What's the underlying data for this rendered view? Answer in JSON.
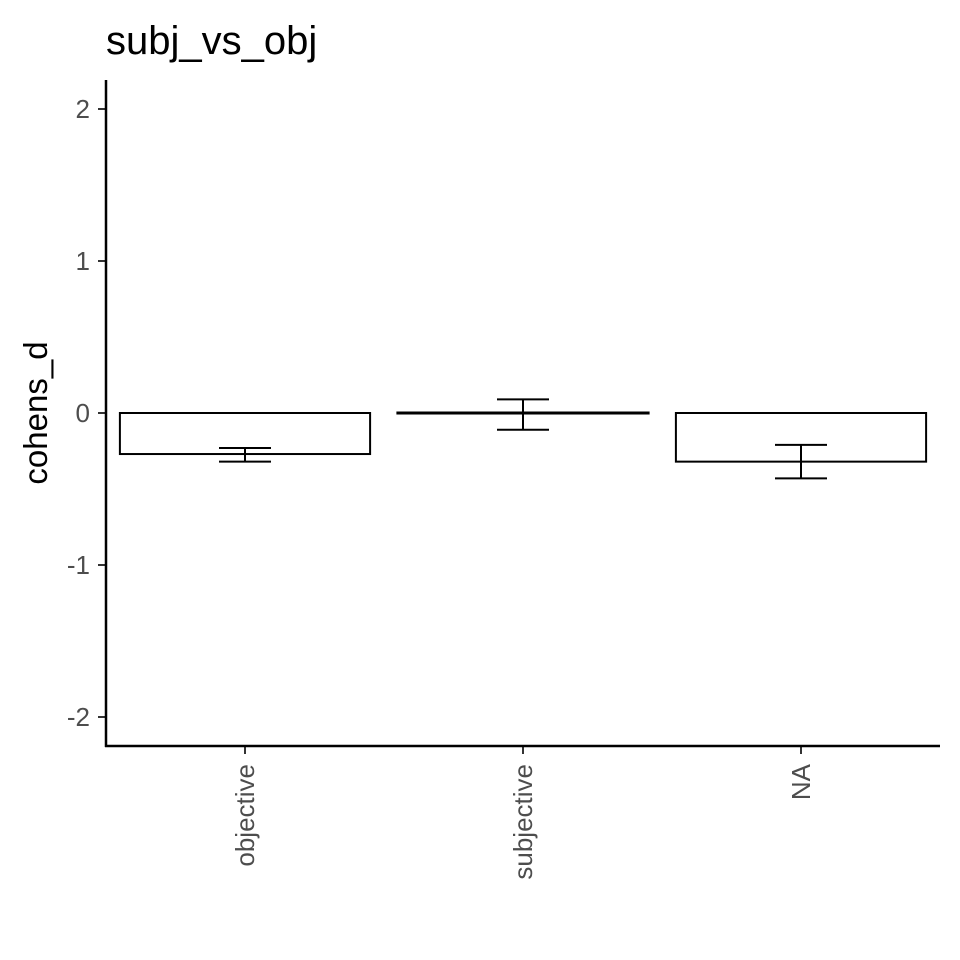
{
  "chart_data": {
    "type": "bar",
    "title": "subj_vs_obj",
    "xlabel": "",
    "ylabel": "cohens_d",
    "categories": [
      "objective",
      "subjective",
      "NA"
    ],
    "values": [
      -0.27,
      0.0,
      -0.32
    ],
    "error_low": [
      -0.32,
      -0.11,
      -0.43
    ],
    "error_high": [
      -0.23,
      0.09,
      -0.21
    ],
    "ylim": [
      -2.2,
      2.1
    ],
    "yticks": [
      -2,
      -1,
      0,
      1,
      2
    ],
    "ytick_labels": [
      "-2",
      "-1",
      "0",
      "1",
      "2"
    ],
    "grid": false,
    "legend": "none",
    "bar_fill": "#ffffff",
    "bar_stroke": "#000000"
  }
}
